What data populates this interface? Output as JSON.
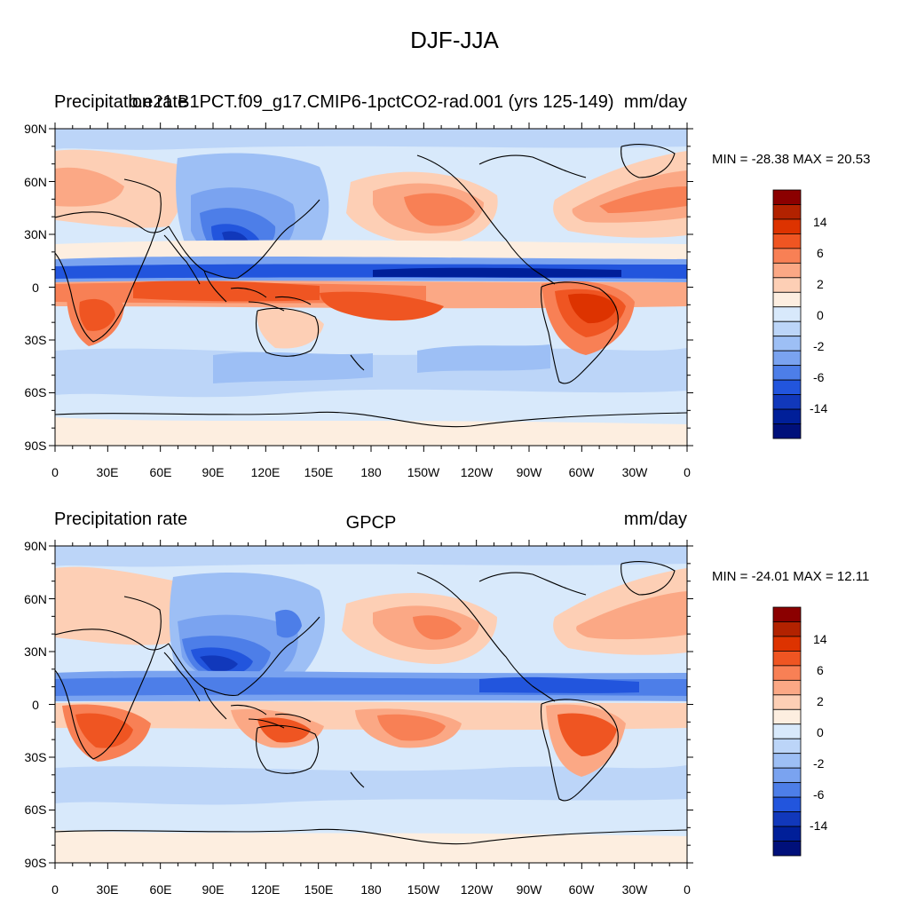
{
  "title": "DJF-JJA",
  "panels": [
    {
      "left_string": "Precipitation rate",
      "center_string": "b.e21.B1PCT.f09_g17.CMIP6-1pctCO2-rad.001 (yrs 125-149)",
      "right_string": "mm/day",
      "min_max": "MIN = -28.38 MAX =  20.53",
      "lat_labels": [
        "90N",
        "60N",
        "30N",
        "0",
        "30S",
        "60S",
        "90S"
      ],
      "lon_labels": [
        "0",
        "30E",
        "60E",
        "90E",
        "120E",
        "150E",
        "180",
        "150W",
        "120W",
        "90W",
        "60W",
        "30W",
        "0"
      ],
      "colorbar_labels": [
        "14",
        "6",
        "2",
        "0",
        "-2",
        "-6",
        "-14"
      ]
    },
    {
      "left_string": "Precipitation rate",
      "center_string": "GPCP",
      "right_string": "mm/day",
      "min_max": "MIN = -24.01 MAX =  12.11",
      "lat_labels": [
        "90N",
        "60N",
        "30N",
        "0",
        "30S",
        "60S",
        "90S"
      ],
      "lon_labels": [
        "0",
        "30E",
        "60E",
        "90E",
        "120E",
        "150E",
        "180",
        "150W",
        "120W",
        "90W",
        "60W",
        "30W",
        "0"
      ],
      "colorbar_labels": [
        "14",
        "6",
        "2",
        "0",
        "-2",
        "-6",
        "-14"
      ]
    }
  ],
  "palette": [
    "#8b0000",
    "#b22200",
    "#dd3300",
    "#ef5522",
    "#f88055",
    "#fba885",
    "#fdcfb5",
    "#fdeee0",
    "#d8e9fb",
    "#bcd5f8",
    "#9dbff5",
    "#7aa3f0",
    "#4d7ee8",
    "#2255dd",
    "#1138bb",
    "#001f99",
    "#00107a"
  ]
}
